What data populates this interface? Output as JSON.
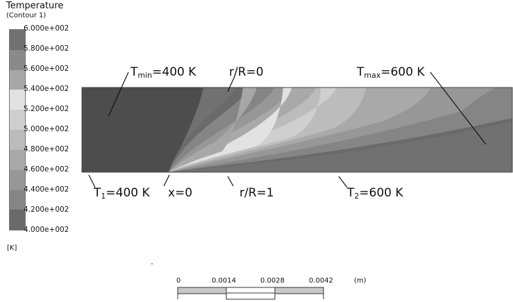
{
  "legend": {
    "title": "Temperature",
    "subtitle": "(Contour  1)",
    "unit": "[K]",
    "ticks": [
      "6.000e+002",
      "5.800e+002",
      "5.600e+002",
      "5.400e+002",
      "5.200e+002",
      "5.000e+002",
      "4.800e+002",
      "4.600e+002",
      "4.400e+002",
      "4.200e+002",
      "4.000e+002"
    ],
    "colors": [
      "#717171",
      "#8a8a8a",
      "#a7a7a7",
      "#e2e2e2",
      "#cfcfcf",
      "#bcbcbc",
      "#a9a9a9",
      "#979797",
      "#858585",
      "#6a6a6a",
      "#4d4d4d"
    ]
  },
  "annotations": {
    "tmin": {
      "main": "T",
      "sub": "min",
      "rest": "=400 K"
    },
    "rR0": "r/R=0",
    "tmax": {
      "main": "T",
      "sub": "max",
      "rest": "=600 K"
    },
    "t1": {
      "main": "T",
      "sub": "1",
      "rest": "=400 K"
    },
    "x0": "x=0",
    "rR1": "r/R=1",
    "t2": {
      "main": "T",
      "sub": "2",
      "rest": "=600 K"
    }
  },
  "scale_bar": {
    "labels": [
      "0",
      "0.0014",
      "0.0028",
      "0.0042"
    ],
    "unit": "(m)"
  }
}
